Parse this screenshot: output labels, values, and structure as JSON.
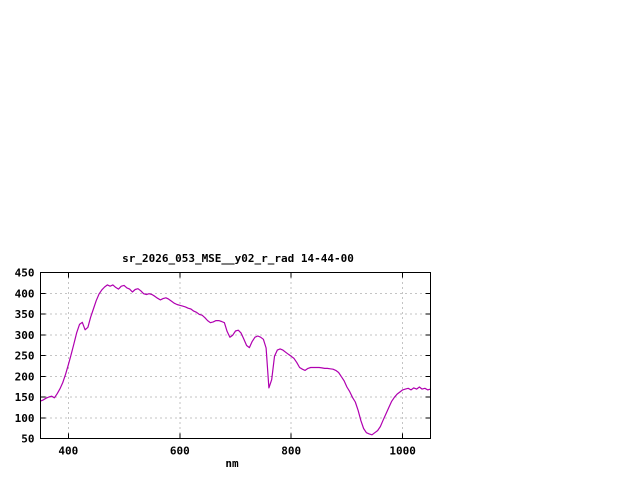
{
  "window": {
    "background_color": "#ffffff",
    "text_color": "#000000"
  },
  "chart_data": {
    "type": "line",
    "title": "sr_2026_053_MSE__y02_r_rad 14-44-00",
    "xlabel": "nm",
    "ylabel": "",
    "xlim": [
      350,
      1050
    ],
    "ylim": [
      50,
      450
    ],
    "xticks": [
      400,
      600,
      800,
      1000
    ],
    "yticks": [
      50,
      100,
      150,
      200,
      250,
      300,
      350,
      400,
      450
    ],
    "grid": true,
    "grid_style": "dotted",
    "legend": "none",
    "line_color": "#b000b0",
    "border_color": "#000000",
    "grid_color": "#888888",
    "series": [
      {
        "name": "sr_2026_053_MSE__y02_r_rad",
        "x": [
          350,
          355,
          360,
          365,
          370,
          375,
          380,
          385,
          390,
          395,
          400,
          405,
          410,
          415,
          420,
          425,
          430,
          435,
          440,
          445,
          450,
          455,
          460,
          465,
          470,
          475,
          480,
          485,
          490,
          495,
          500,
          505,
          510,
          515,
          520,
          525,
          530,
          535,
          540,
          545,
          550,
          555,
          560,
          565,
          570,
          575,
          580,
          585,
          590,
          595,
          600,
          605,
          610,
          615,
          620,
          625,
          630,
          635,
          640,
          645,
          650,
          655,
          660,
          665,
          670,
          675,
          680,
          685,
          690,
          695,
          700,
          705,
          710,
          715,
          720,
          725,
          730,
          735,
          740,
          745,
          750,
          755,
          760,
          765,
          770,
          775,
          780,
          785,
          790,
          795,
          800,
          805,
          810,
          815,
          820,
          825,
          830,
          835,
          840,
          845,
          850,
          855,
          860,
          865,
          870,
          875,
          880,
          885,
          890,
          895,
          900,
          905,
          910,
          915,
          920,
          925,
          930,
          935,
          940,
          945,
          950,
          955,
          960,
          965,
          970,
          975,
          980,
          985,
          990,
          995,
          1000,
          1005,
          1010,
          1015,
          1020,
          1025,
          1030,
          1035,
          1040,
          1045,
          1050
        ],
        "y": [
          140,
          143,
          147,
          150,
          152,
          148,
          158,
          170,
          185,
          205,
          228,
          252,
          278,
          305,
          325,
          330,
          312,
          318,
          342,
          362,
          382,
          398,
          408,
          415,
          420,
          417,
          420,
          414,
          410,
          417,
          419,
          413,
          410,
          403,
          409,
          411,
          406,
          399,
          397,
          399,
          397,
          393,
          388,
          384,
          387,
          389,
          386,
          381,
          376,
          373,
          371,
          369,
          367,
          364,
          362,
          357,
          354,
          349,
          347,
          341,
          334,
          329,
          331,
          334,
          334,
          332,
          329,
          308,
          294,
          299,
          309,
          311,
          304,
          289,
          274,
          269,
          284,
          294,
          297,
          294,
          289,
          268,
          172,
          192,
          248,
          263,
          266,
          263,
          258,
          253,
          248,
          243,
          233,
          221,
          217,
          214,
          219,
          221,
          221,
          221,
          221,
          220,
          219,
          219,
          218,
          217,
          214,
          209,
          199,
          189,
          174,
          163,
          149,
          138,
          118,
          93,
          74,
          64,
          61,
          59,
          64,
          69,
          79,
          94,
          109,
          124,
          139,
          149,
          157,
          162,
          167,
          169,
          171,
          167,
          172,
          169,
          174,
          169,
          171,
          167,
          169
        ]
      }
    ]
  }
}
